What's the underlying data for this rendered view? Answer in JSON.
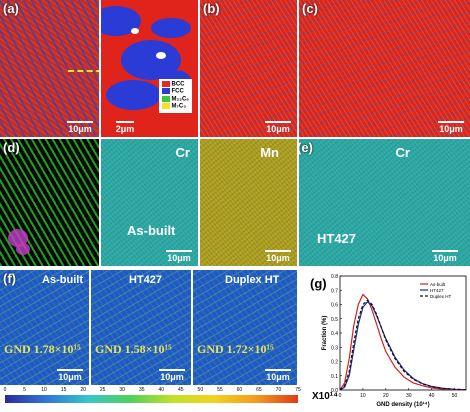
{
  "panels": {
    "a": {
      "label": "(a)",
      "scale": "10μm"
    },
    "a_inset": {
      "scale": "2μm",
      "legend": [
        {
          "name": "BCC",
          "color": "#e02a22"
        },
        {
          "name": "FCC",
          "color": "#2a3bd6"
        },
        {
          "name": "M₂₃C₆",
          "color": "#3fc43a"
        },
        {
          "name": "M₇C₃",
          "color": "#f2e32a"
        }
      ]
    },
    "b": {
      "label": "(b)",
      "scale": "10μm"
    },
    "c": {
      "label": "(c)",
      "scale": "10μm"
    },
    "d": {
      "label": "(d)"
    },
    "d_cr": {
      "element": "Cr",
      "caption": "As-built",
      "scale": "10μm"
    },
    "d_mn": {
      "element": "Mn",
      "scale": "10μm"
    },
    "e": {
      "label": "(e)",
      "element": "Cr",
      "caption": "HT427",
      "scale": "10μm"
    },
    "f": {
      "label": "(f)"
    },
    "f1": {
      "title": "As-built",
      "gnd": "GND 1.78×10¹⁵",
      "scale": "10μm"
    },
    "f2": {
      "title": "HT427",
      "gnd": "GND 1.58×10¹⁵",
      "scale": "10μm"
    },
    "f3": {
      "title": "Duplex HT",
      "gnd": "GND 1.72×10¹⁵",
      "scale": "10μm"
    },
    "g": {
      "label": "(g)"
    }
  },
  "colorbar": {
    "ticks": [
      "0",
      "5",
      "10",
      "15",
      "20",
      "25",
      "30",
      "35",
      "40",
      "45",
      "50",
      "55",
      "60",
      "65",
      "70",
      "75"
    ],
    "unit": "X10¹⁴"
  },
  "chart_data": {
    "type": "line",
    "xlabel": "GND density (10¹⁴)",
    "ylabel": "Fraction (%)",
    "xlim": [
      0,
      55
    ],
    "ylim": [
      0,
      0.8
    ],
    "xticks": [
      "0",
      "10",
      "20",
      "30",
      "40",
      "50"
    ],
    "yticks": [
      "0.0",
      "0.1",
      "0.2",
      "0.3",
      "0.4",
      "0.5",
      "0.6",
      "0.7",
      "0.8"
    ],
    "legend_position": "top-right",
    "series": [
      {
        "name": "As-built",
        "color": "#d42020",
        "dash": "",
        "x": [
          0,
          2,
          4,
          6,
          8,
          10,
          12,
          14,
          16,
          18,
          20,
          24,
          28,
          32,
          36,
          40,
          45,
          50,
          55
        ],
        "y": [
          0,
          0.05,
          0.22,
          0.45,
          0.6,
          0.67,
          0.64,
          0.56,
          0.46,
          0.36,
          0.27,
          0.16,
          0.09,
          0.05,
          0.03,
          0.015,
          0.007,
          0.003,
          0.001
        ]
      },
      {
        "name": "HT427",
        "color": "#1a2a8a",
        "dash": "",
        "x": [
          0,
          2,
          4,
          6,
          8,
          10,
          12,
          14,
          16,
          18,
          20,
          24,
          28,
          32,
          36,
          40,
          45,
          50,
          55
        ],
        "y": [
          0,
          0.02,
          0.1,
          0.28,
          0.46,
          0.58,
          0.62,
          0.59,
          0.52,
          0.44,
          0.36,
          0.23,
          0.14,
          0.08,
          0.045,
          0.025,
          0.012,
          0.005,
          0.002
        ]
      },
      {
        "name": "Duplex HT",
        "color": "#111111",
        "dash": "3,2",
        "x": [
          0,
          2,
          4,
          6,
          8,
          10,
          12,
          14,
          16,
          18,
          20,
          24,
          28,
          32,
          36,
          40,
          45,
          50,
          55
        ],
        "y": [
          0,
          0.03,
          0.13,
          0.33,
          0.5,
          0.6,
          0.63,
          0.6,
          0.53,
          0.44,
          0.35,
          0.22,
          0.13,
          0.075,
          0.042,
          0.023,
          0.011,
          0.005,
          0.002
        ]
      }
    ]
  }
}
